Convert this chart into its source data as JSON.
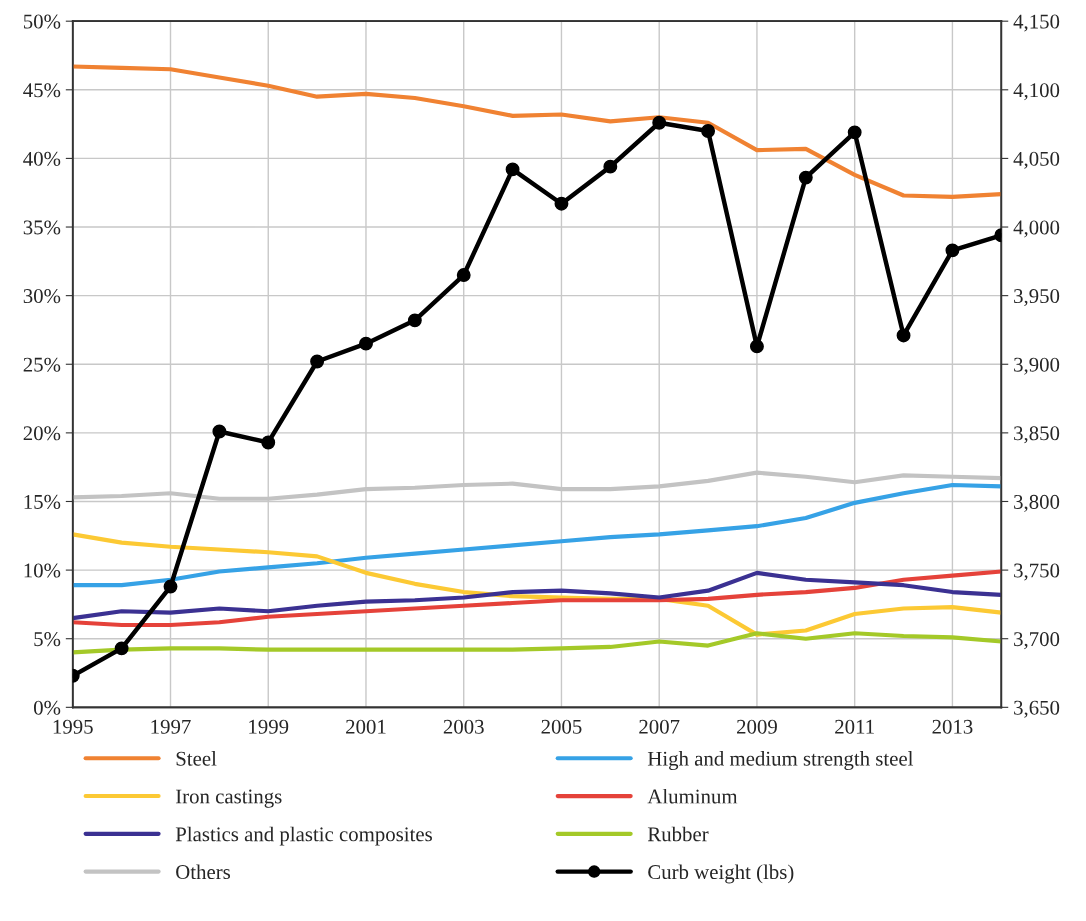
{
  "chart_data": {
    "type": "line",
    "x": [
      1995,
      1996,
      1997,
      1998,
      1999,
      2000,
      2001,
      2002,
      2003,
      2004,
      2005,
      2006,
      2007,
      2008,
      2009,
      2010,
      2011,
      2012,
      2013,
      2014
    ],
    "series": [
      {
        "name": "Steel",
        "color": "#f08232",
        "values": [
          46.7,
          46.6,
          46.5,
          45.9,
          45.3,
          44.5,
          44.7,
          44.4,
          43.8,
          43.1,
          43.2,
          42.7,
          43.0,
          42.6,
          40.6,
          40.7,
          38.8,
          37.3,
          37.2,
          37.4
        ]
      },
      {
        "name": "High and medium strength steel",
        "color": "#36a2e6",
        "values": [
          8.9,
          8.9,
          9.3,
          9.9,
          10.2,
          10.5,
          10.9,
          11.2,
          11.5,
          11.8,
          12.1,
          12.4,
          12.6,
          12.9,
          13.2,
          13.8,
          14.9,
          15.6,
          16.2,
          16.1
        ]
      },
      {
        "name": "Iron castings",
        "color": "#fcc934",
        "values": [
          12.6,
          12.0,
          11.7,
          11.5,
          11.3,
          11.0,
          9.8,
          9.0,
          8.4,
          8.1,
          8.0,
          7.9,
          7.9,
          7.4,
          5.3,
          5.6,
          6.8,
          7.2,
          7.3,
          6.9
        ]
      },
      {
        "name": "Aluminum",
        "color": "#e5423a",
        "values": [
          6.2,
          6.0,
          6.0,
          6.2,
          6.6,
          6.8,
          7.0,
          7.2,
          7.4,
          7.6,
          7.8,
          7.8,
          7.8,
          7.9,
          8.2,
          8.4,
          8.7,
          9.3,
          9.6,
          9.9
        ]
      },
      {
        "name": "Plastics and plastic composites",
        "color": "#3b3192",
        "values": [
          6.5,
          7.0,
          6.9,
          7.2,
          7.0,
          7.4,
          7.7,
          7.8,
          8.0,
          8.4,
          8.5,
          8.3,
          8.0,
          8.5,
          9.8,
          9.3,
          9.1,
          8.9,
          8.4,
          8.2
        ]
      },
      {
        "name": "Rubber",
        "color": "#a4c928",
        "values": [
          4.0,
          4.2,
          4.3,
          4.3,
          4.2,
          4.2,
          4.2,
          4.2,
          4.2,
          4.2,
          4.3,
          4.4,
          4.8,
          4.5,
          5.4,
          5.0,
          5.4,
          5.2,
          5.1,
          4.8
        ]
      },
      {
        "name": "Others",
        "color": "#c3c3c3",
        "values": [
          15.3,
          15.4,
          15.6,
          15.2,
          15.2,
          15.5,
          15.9,
          16.0,
          16.2,
          16.3,
          15.9,
          15.9,
          16.1,
          16.5,
          17.1,
          16.8,
          16.4,
          16.9,
          16.8,
          16.7
        ]
      },
      {
        "name": "Curb weight (lbs)",
        "color": "#000000",
        "axis": "y2",
        "marker": "circle",
        "values": [
          3673,
          3693,
          3738,
          3851,
          3843,
          3902,
          3915,
          3932,
          3965,
          4042,
          4017,
          4044,
          4076,
          4070,
          3913,
          4036,
          4069,
          3921,
          3983,
          3994
        ]
      }
    ],
    "xlim": [
      1995,
      2014
    ],
    "xticks": [
      1995,
      1997,
      1999,
      2001,
      2003,
      2005,
      2007,
      2009,
      2011,
      2013
    ],
    "ylim": [
      0,
      50
    ],
    "yticks": [
      {
        "value": 0,
        "label": "0%"
      },
      {
        "value": 5,
        "label": "5%"
      },
      {
        "value": 10,
        "label": "10%"
      },
      {
        "value": 15,
        "label": "15%"
      },
      {
        "value": 20,
        "label": "20%"
      },
      {
        "value": 25,
        "label": "25%"
      },
      {
        "value": 30,
        "label": "30%"
      },
      {
        "value": 35,
        "label": "35%"
      },
      {
        "value": 40,
        "label": "40%"
      },
      {
        "value": 45,
        "label": "45%"
      },
      {
        "value": 50,
        "label": "50%"
      }
    ],
    "y2lim": [
      3650,
      4150
    ],
    "y2ticks": [
      {
        "value": 3650,
        "label": "3,650"
      },
      {
        "value": 3700,
        "label": "3,700"
      },
      {
        "value": 3750,
        "label": "3,750"
      },
      {
        "value": 3800,
        "label": "3,800"
      },
      {
        "value": 3850,
        "label": "3,850"
      },
      {
        "value": 3900,
        "label": "3,900"
      },
      {
        "value": 3950,
        "label": "3,950"
      },
      {
        "value": 4000,
        "label": "4,000"
      },
      {
        "value": 4050,
        "label": "4,050"
      },
      {
        "value": 4100,
        "label": "4,100"
      },
      {
        "value": 4150,
        "label": "4,150"
      }
    ],
    "grid": true,
    "legend": "bottom"
  }
}
